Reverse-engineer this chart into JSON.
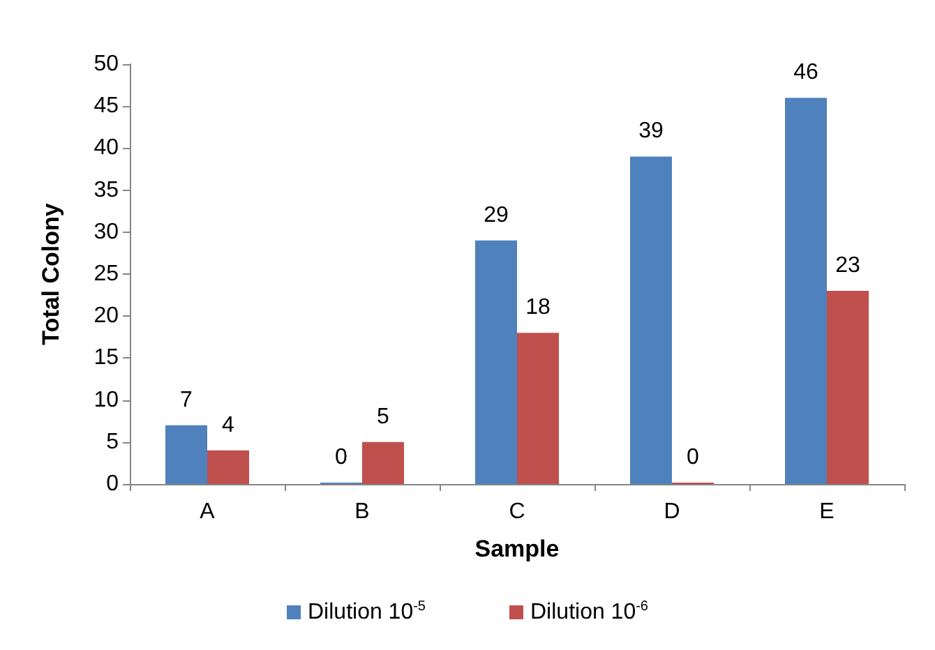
{
  "chart_data": {
    "type": "bar",
    "xlabel": "Sample",
    "ylabel": "Total Colony",
    "categories": [
      "A",
      "B",
      "C",
      "D",
      "E"
    ],
    "series": [
      {
        "name": "Dilution 10$^{-5}$",
        "color": "#4f81bd",
        "values": [
          7,
          0,
          29,
          39,
          46
        ]
      },
      {
        "name": "Dilution 10$^{-6}$",
        "color": "#c0504d",
        "values": [
          4,
          5,
          18,
          0,
          23
        ]
      }
    ],
    "ylim": [
      0,
      50
    ],
    "yticks": [
      0,
      5,
      10,
      15,
      20,
      25,
      30,
      35,
      40,
      45,
      50
    ],
    "grid": false,
    "legend": "bottom",
    "data_labels": true
  }
}
